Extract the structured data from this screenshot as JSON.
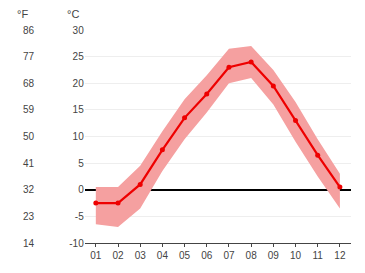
{
  "chart_data": {
    "type": "line",
    "x": [
      1,
      2,
      3,
      4,
      5,
      6,
      7,
      8,
      9,
      10,
      11,
      12
    ],
    "xlim": [
      0.5,
      12.5
    ],
    "xticks": [
      {
        "value": 1,
        "label": "01"
      },
      {
        "value": 2,
        "label": "02"
      },
      {
        "value": 3,
        "label": "03"
      },
      {
        "value": 4,
        "label": "04"
      },
      {
        "value": 5,
        "label": "05"
      },
      {
        "value": 6,
        "label": "06"
      },
      {
        "value": 7,
        "label": "07"
      },
      {
        "value": 8,
        "label": "08"
      },
      {
        "value": 9,
        "label": "09"
      },
      {
        "value": 10,
        "label": "10"
      },
      {
        "value": 11,
        "label": "11"
      },
      {
        "value": 12,
        "label": "12"
      }
    ],
    "series": [
      {
        "values": [
          -2.5,
          -2.5,
          1.0,
          7.5,
          13.5,
          18.0,
          23.0,
          24.0,
          19.5,
          13.0,
          6.5,
          0.5
        ],
        "color": "#ee0000",
        "marker": "circle",
        "line_style": "solid"
      }
    ],
    "band": {
      "low": [
        -6.5,
        -7.0,
        -3.5,
        3.5,
        9.5,
        14.5,
        20.0,
        21.0,
        16.0,
        9.0,
        2.5,
        -3.5
      ],
      "high": [
        0.5,
        0.5,
        4.5,
        11.0,
        17.0,
        21.5,
        26.5,
        27.0,
        22.5,
        16.5,
        9.5,
        3.0
      ],
      "color": "#f5a0a0"
    },
    "ylim": [
      -10,
      30
    ],
    "yticks": [
      -10,
      -5,
      0,
      5,
      10,
      15,
      20,
      25,
      30
    ],
    "y2lim": [
      14,
      86
    ],
    "y2ticks": [
      14,
      23,
      32,
      41,
      50,
      59,
      68,
      77,
      86
    ],
    "ylabel": "°C",
    "y2label": "°F",
    "grid": true
  }
}
